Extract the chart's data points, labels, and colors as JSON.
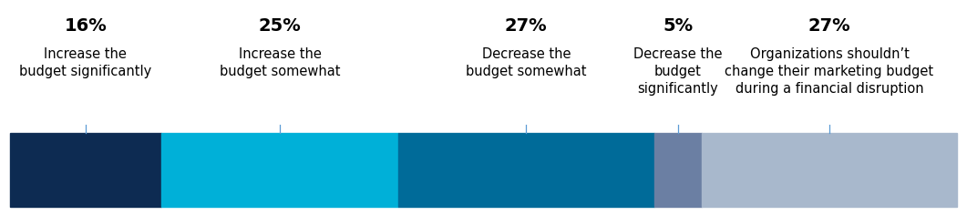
{
  "segments": [
    {
      "value": 16,
      "color": "#0d2b52",
      "label_pct": "16%",
      "label_desc": "Increase the\nbudget significantly"
    },
    {
      "value": 25,
      "color": "#00b0d8",
      "label_pct": "25%",
      "label_desc": "Increase the\nbudget somewhat"
    },
    {
      "value": 27,
      "color": "#006b99",
      "label_pct": "27%",
      "label_desc": "Decrease the\nbudget somewhat"
    },
    {
      "value": 5,
      "color": "#6b7fa3",
      "label_pct": "5%",
      "label_desc": "Decrease the\nbudget\nsignificantly"
    },
    {
      "value": 27,
      "color": "#a8b8cc",
      "label_pct": "27%",
      "label_desc": "Organizations shouldn’t\nchange their marketing budget\nduring a financial disruption"
    }
  ],
  "background_color": "#ffffff",
  "pct_fontsize": 14,
  "desc_fontsize": 10.5,
  "line_color": "#5b9bd5",
  "fig_width": 10.61,
  "fig_height": 2.36
}
